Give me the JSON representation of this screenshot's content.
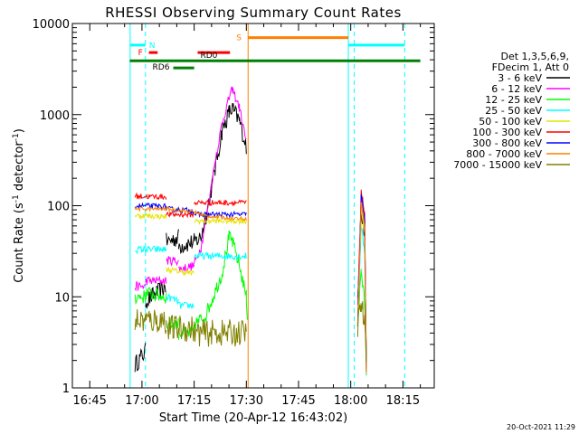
{
  "chart_data": {
    "type": "line",
    "title": "RHESSI Observing Summary Count Rates",
    "xlabel": "Start Time (20-Apr-12 16:43:02)",
    "ylabel_main": "Count Rate (s",
    "ylabel_sup1": "-1",
    "ylabel_mid": " detector",
    "ylabel_sup2": "-1",
    "ylabel_end": ")",
    "yscale": "log",
    "ylim": [
      1,
      10000
    ],
    "xlim": [
      "16:40",
      "18:24"
    ],
    "x_ticks": [
      {
        "t": "16:45",
        "m": 5
      },
      {
        "t": "17:00",
        "m": 20
      },
      {
        "t": "17:15",
        "m": 35
      },
      {
        "t": "17:30",
        "m": 50
      },
      {
        "t": "17:45",
        "m": 65
      },
      {
        "t": "18:00",
        "m": 80
      },
      {
        "t": "18:15",
        "m": 95
      }
    ],
    "y_ticks": [
      {
        "t": "1",
        "v": 1
      },
      {
        "t": "10",
        "v": 10
      },
      {
        "t": "100",
        "v": 100
      },
      {
        "t": "1000",
        "v": 1000
      },
      {
        "t": "10000",
        "v": 10000
      }
    ],
    "legend": {
      "placement": "right",
      "header": [
        "Det 1,3,5,6,9,",
        "FDecim 1, Att 0"
      ],
      "entries": [
        {
          "label": "3 - 6 keV",
          "color": "#000000"
        },
        {
          "label": "6 - 12 keV",
          "color": "#ff00ff"
        },
        {
          "label": "12 - 25 keV",
          "color": "#00ff00"
        },
        {
          "label": "25 - 50 keV",
          "color": "#00ffff"
        },
        {
          "label": "50 - 100 keV",
          "color": "#e5e500"
        },
        {
          "label": "100 - 300 keV",
          "color": "#ff0000"
        },
        {
          "label": "300 - 800 keV",
          "color": "#0000ff"
        },
        {
          "label": "800 - 7000 keV",
          "color": "#ff8000"
        },
        {
          "label": "7000 - 15000 keV",
          "color": "#808000"
        }
      ]
    },
    "state_bars": [
      {
        "label": "N",
        "color": "#00ffff",
        "y": 5800,
        "segments": [
          [
            16.5,
            21
          ],
          [
            79.3,
            95.5
          ]
        ]
      },
      {
        "label": "F",
        "color": "#ff0000",
        "y": 4800,
        "segments": [
          [
            22,
            24.5
          ]
        ]
      },
      {
        "label": "RD0",
        "color": "#ff0000",
        "y": 4800,
        "segments": [
          [
            36,
            45.3
          ]
        ]
      },
      {
        "label": "S",
        "color": "#ff8000",
        "y": 7000,
        "segments": [
          [
            50.5,
            79.3
          ]
        ]
      },
      {
        "label": "RD6",
        "color": "#008000",
        "y": 3250,
        "segments": [
          [
            29,
            35
          ]
        ]
      },
      {
        "color": "#008000",
        "y": 3900,
        "segments": [
          [
            16.5,
            100
          ]
        ]
      }
    ],
    "vlines": [
      {
        "m": 16.6,
        "color": "#00ffff",
        "style": "solid"
      },
      {
        "m": 21.0,
        "color": "#00ffff",
        "style": "dashed"
      },
      {
        "m": 50.5,
        "color": "#ff8000",
        "style": "solid"
      },
      {
        "m": 79.3,
        "color": "#00ffff",
        "style": "solid"
      },
      {
        "m": 81.0,
        "color": "#00ffff",
        "style": "dashed"
      },
      {
        "m": 95.5,
        "color": "#00ffff",
        "style": "dashed"
      }
    ],
    "series": [
      {
        "name": "3 - 6 keV",
        "color": "#000000",
        "noise": 0.1,
        "segments": [
          {
            "points": [
              [
                18,
                1.8
              ],
              [
                21,
                2.5
              ]
            ]
          },
          {
            "points": [
              [
                21,
                9
              ],
              [
                27,
                13
              ]
            ]
          },
          {
            "points": [
              [
                27,
                40
              ],
              [
                30.5,
                45
              ]
            ]
          },
          {
            "points": [
              [
                30.5,
                36
              ],
              [
                35,
                40
              ]
            ]
          },
          {
            "points": [
              [
                35,
                40
              ],
              [
                37,
                45
              ],
              [
                39,
                100
              ],
              [
                41,
                250
              ],
              [
                43,
                650
              ],
              [
                45,
                1050
              ],
              [
                46,
                1150
              ],
              [
                48,
                850
              ],
              [
                50,
                450
              ]
            ]
          },
          {
            "points": [
              [
                82,
                8
              ],
              [
                83,
                95
              ],
              [
                84,
                45
              ],
              [
                84.5,
                1.5
              ]
            ]
          }
        ]
      },
      {
        "name": "6 - 12 keV",
        "color": "#ff00ff",
        "noise": 0.05,
        "segments": [
          {
            "points": [
              [
                18,
                13
              ],
              [
                21,
                13
              ]
            ]
          },
          {
            "points": [
              [
                21,
                15
              ],
              [
                27,
                15
              ]
            ]
          },
          {
            "points": [
              [
                27,
                25
              ],
              [
                30.5,
                25
              ]
            ]
          },
          {
            "points": [
              [
                30.5,
                20
              ],
              [
                35,
                22
              ]
            ]
          },
          {
            "points": [
              [
                35,
                23
              ],
              [
                37,
                35
              ],
              [
                39,
                100
              ],
              [
                41,
                300
              ],
              [
                43,
                800
              ],
              [
                45,
                1500
              ],
              [
                46,
                1900
              ],
              [
                48,
                1200
              ],
              [
                50,
                500
              ]
            ]
          },
          {
            "points": [
              [
                82,
                8
              ],
              [
                83,
                120
              ],
              [
                84,
                60
              ],
              [
                84.5,
                1.5
              ]
            ]
          }
        ]
      },
      {
        "name": "12 - 25 keV",
        "color": "#00ff00",
        "noise": 0.08,
        "segments": [
          {
            "points": [
              [
                18,
                10
              ],
              [
                21,
                10
              ]
            ]
          },
          {
            "points": [
              [
                21,
                11
              ],
              [
                27,
                10
              ]
            ]
          },
          {
            "points": [
              [
                27,
                5
              ],
              [
                30.5,
                5
              ]
            ]
          },
          {
            "points": [
              [
                30.5,
                4
              ],
              [
                35,
                4
              ]
            ]
          },
          {
            "points": [
              [
                35,
                5
              ],
              [
                38,
                6
              ],
              [
                40,
                9
              ],
              [
                43,
                18
              ],
              [
                45,
                45
              ],
              [
                46,
                40
              ],
              [
                48,
                22
              ],
              [
                50,
                10
              ],
              [
                50.3,
                6
              ]
            ]
          },
          {
            "points": [
              [
                82,
                5
              ],
              [
                83,
                20
              ],
              [
                84,
                8
              ],
              [
                84.5,
                1.5
              ]
            ]
          }
        ]
      },
      {
        "name": "25 - 50 keV",
        "color": "#00ffff",
        "noise": 0.04,
        "segments": [
          {
            "points": [
              [
                18,
                33
              ],
              [
                21,
                33
              ]
            ]
          },
          {
            "points": [
              [
                21,
                33
              ],
              [
                27,
                33
              ]
            ]
          },
          {
            "points": [
              [
                27,
                10
              ],
              [
                30.5,
                9
              ]
            ]
          },
          {
            "points": [
              [
                30.5,
                8
              ],
              [
                35,
                8
              ]
            ]
          },
          {
            "points": [
              [
                35,
                28
              ],
              [
                50,
                28
              ]
            ]
          },
          {
            "points": [
              [
                82,
                5
              ],
              [
                83,
                60
              ],
              [
                84,
                30
              ],
              [
                84.5,
                1.5
              ]
            ]
          }
        ]
      },
      {
        "name": "50 - 100 keV",
        "color": "#e5e500",
        "noise": 0.03,
        "segments": [
          {
            "points": [
              [
                18,
                78
              ],
              [
                27,
                76
              ]
            ]
          },
          {
            "points": [
              [
                27,
                20
              ],
              [
                35,
                18
              ]
            ]
          },
          {
            "points": [
              [
                35,
                68
              ],
              [
                50,
                68
              ]
            ]
          },
          {
            "points": [
              [
                82,
                5
              ],
              [
                83,
                90
              ],
              [
                84,
                50
              ],
              [
                84.5,
                1.5
              ]
            ]
          }
        ]
      },
      {
        "name": "100 - 300 keV",
        "color": "#ff0000",
        "noise": 0.03,
        "segments": [
          {
            "points": [
              [
                18,
                127
              ],
              [
                27,
                125
              ]
            ]
          },
          {
            "points": [
              [
                27,
                80
              ],
              [
                35,
                80
              ]
            ]
          },
          {
            "points": [
              [
                35,
                108
              ],
              [
                50,
                108
              ]
            ]
          },
          {
            "points": [
              [
                82,
                5
              ],
              [
                83,
                150
              ],
              [
                84,
                80
              ],
              [
                84.5,
                1.5
              ]
            ]
          }
        ]
      },
      {
        "name": "300 - 800 keV",
        "color": "#0000ff",
        "noise": 0.03,
        "segments": [
          {
            "points": [
              [
                18,
                100
              ],
              [
                27,
                98
              ]
            ]
          },
          {
            "points": [
              [
                27,
                92
              ],
              [
                35,
                88
              ]
            ]
          },
          {
            "points": [
              [
                35,
                80
              ],
              [
                50,
                80
              ]
            ]
          },
          {
            "points": [
              [
                82,
                5
              ],
              [
                83,
                130
              ],
              [
                84,
                70
              ],
              [
                84.5,
                1.5
              ]
            ]
          }
        ]
      },
      {
        "name": "800 - 7000 keV",
        "color": "#ff8000",
        "noise": 0.02,
        "segments": [
          {
            "points": [
              [
                18,
                92
              ],
              [
                27,
                92
              ],
              [
                30,
                90
              ],
              [
                33,
                87
              ],
              [
                35,
                85
              ],
              [
                38,
                78
              ],
              [
                42,
                75
              ],
              [
                46,
                73
              ],
              [
                50,
                72
              ]
            ]
          },
          {
            "points": [
              [
                82,
                5
              ],
              [
                83,
                110
              ],
              [
                84,
                60
              ],
              [
                84.5,
                1.5
              ]
            ]
          }
        ]
      },
      {
        "name": "7000 - 15000 keV",
        "color": "#808000",
        "noise": 0.15,
        "segments": [
          {
            "points": [
              [
                18,
                5.5
              ],
              [
                27,
                5.5
              ]
            ]
          },
          {
            "points": [
              [
                27,
                4.5
              ],
              [
                35,
                4.5
              ]
            ]
          },
          {
            "points": [
              [
                35,
                4
              ],
              [
                50,
                4
              ]
            ]
          },
          {
            "points": [
              [
                82,
                5
              ],
              [
                83,
                8
              ],
              [
                84,
                5
              ],
              [
                84.5,
                1.5
              ]
            ]
          }
        ]
      }
    ]
  },
  "footer": {
    "date": "20-Oct-2021 11:29"
  }
}
